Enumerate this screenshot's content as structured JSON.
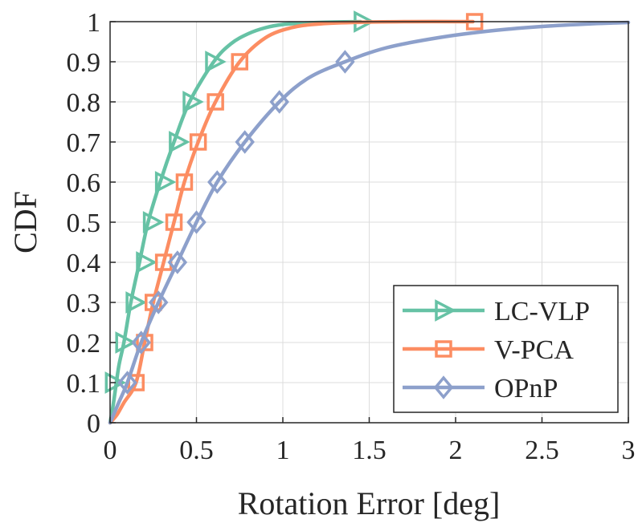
{
  "chart_data": {
    "type": "line",
    "title": "",
    "xlabel": "Rotation Error [deg]",
    "ylabel": "CDF",
    "xlim": [
      0,
      3
    ],
    "ylim": [
      0,
      1
    ],
    "grid": true,
    "legend_position": "bottom-right",
    "x_ticks": [
      0,
      0.5,
      1,
      1.5,
      2,
      2.5,
      3
    ],
    "x_tick_labels": [
      "0",
      "0.5",
      "1",
      "1.5",
      "2",
      "2.5",
      "3"
    ],
    "y_ticks": [
      0,
      0.1,
      0.2,
      0.3,
      0.4,
      0.5,
      0.6,
      0.7,
      0.8,
      0.9,
      1
    ],
    "y_tick_labels": [
      "0",
      "0.1",
      "0.2",
      "0.3",
      "0.4",
      "0.5",
      "0.6",
      "0.7",
      "0.8",
      "0.9",
      "1"
    ],
    "series": [
      {
        "name": "LC-VLP",
        "color": "#66c2a5",
        "marker": "triangle-right",
        "curve": [
          [
            0,
            0
          ],
          [
            0.02,
            0.05
          ],
          [
            0.05,
            0.14
          ],
          [
            0.08,
            0.2
          ],
          [
            0.12,
            0.3
          ],
          [
            0.17,
            0.4
          ],
          [
            0.22,
            0.5
          ],
          [
            0.29,
            0.6
          ],
          [
            0.37,
            0.7
          ],
          [
            0.46,
            0.8
          ],
          [
            0.6,
            0.9
          ],
          [
            0.7,
            0.945
          ],
          [
            0.8,
            0.97
          ],
          [
            0.9,
            0.985
          ],
          [
            1.0,
            0.993
          ],
          [
            1.15,
            0.997
          ],
          [
            1.3,
            0.999
          ],
          [
            1.45,
            1.0
          ]
        ],
        "markers": [
          [
            0.02,
            0.1
          ],
          [
            0.08,
            0.2
          ],
          [
            0.14,
            0.3
          ],
          [
            0.2,
            0.4
          ],
          [
            0.24,
            0.5
          ],
          [
            0.31,
            0.6
          ],
          [
            0.39,
            0.7
          ],
          [
            0.47,
            0.8
          ],
          [
            0.6,
            0.9
          ],
          [
            1.46,
            1.0
          ]
        ]
      },
      {
        "name": "V-PCA",
        "color": "#fc8d62",
        "marker": "square",
        "curve": [
          [
            0,
            0
          ],
          [
            0.04,
            0.02
          ],
          [
            0.08,
            0.05
          ],
          [
            0.15,
            0.1
          ],
          [
            0.2,
            0.2
          ],
          [
            0.25,
            0.3
          ],
          [
            0.31,
            0.4
          ],
          [
            0.37,
            0.5
          ],
          [
            0.43,
            0.6
          ],
          [
            0.51,
            0.7
          ],
          [
            0.61,
            0.8
          ],
          [
            0.75,
            0.9
          ],
          [
            0.9,
            0.96
          ],
          [
            1.05,
            0.985
          ],
          [
            1.2,
            0.994
          ],
          [
            1.4,
            0.998
          ],
          [
            1.7,
            1.0
          ],
          [
            2.1,
            1.0
          ]
        ],
        "markers": [
          [
            0.15,
            0.1
          ],
          [
            0.2,
            0.2
          ],
          [
            0.25,
            0.3
          ],
          [
            0.31,
            0.4
          ],
          [
            0.37,
            0.5
          ],
          [
            0.43,
            0.6
          ],
          [
            0.51,
            0.7
          ],
          [
            0.61,
            0.8
          ],
          [
            0.75,
            0.9
          ],
          [
            2.11,
            1.0
          ]
        ]
      },
      {
        "name": "OPnP",
        "color": "#8da0cb",
        "marker": "diamond",
        "curve": [
          [
            0,
            0
          ],
          [
            0.05,
            0.05
          ],
          [
            0.1,
            0.1
          ],
          [
            0.18,
            0.2
          ],
          [
            0.28,
            0.3
          ],
          [
            0.39,
            0.4
          ],
          [
            0.5,
            0.5
          ],
          [
            0.62,
            0.6
          ],
          [
            0.78,
            0.7
          ],
          [
            0.98,
            0.8
          ],
          [
            1.15,
            0.86
          ],
          [
            1.36,
            0.9
          ],
          [
            1.6,
            0.935
          ],
          [
            1.9,
            0.96
          ],
          [
            2.2,
            0.977
          ],
          [
            2.5,
            0.988
          ],
          [
            2.8,
            0.995
          ],
          [
            3.0,
            0.998
          ]
        ],
        "markers": [
          [
            0.1,
            0.1
          ],
          [
            0.18,
            0.2
          ],
          [
            0.28,
            0.3
          ],
          [
            0.39,
            0.4
          ],
          [
            0.5,
            0.5
          ],
          [
            0.62,
            0.6
          ],
          [
            0.78,
            0.7
          ],
          [
            0.98,
            0.8
          ],
          [
            1.36,
            0.9
          ]
        ]
      }
    ]
  }
}
